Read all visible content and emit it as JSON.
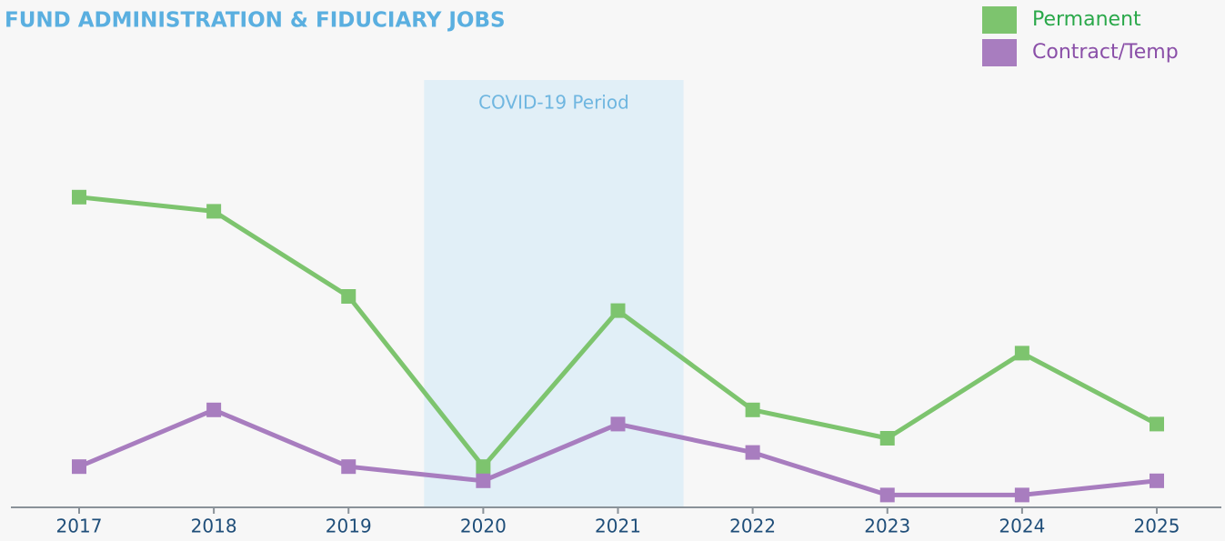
{
  "chart_data": {
    "type": "line",
    "title": "FUND ADMINISTRATION & FIDUCIARY JOBS",
    "categories": [
      "2017",
      "2018",
      "2019",
      "2020",
      "2021",
      "2022",
      "2023",
      "2024",
      "2025"
    ],
    "series": [
      {
        "name": "Permanent",
        "color": "#7dc46e",
        "text_color": "#2aa84a",
        "values": [
          22,
          21,
          15,
          3,
          14,
          7,
          5,
          11,
          6
        ]
      },
      {
        "name": "Contract/Temp",
        "color": "#a87dbf",
        "text_color": "#8a4fa8",
        "values": [
          3,
          7,
          3,
          2,
          6,
          4,
          1,
          1,
          2
        ]
      }
    ],
    "ylim": [
      0,
      30
    ],
    "shaded_region": {
      "label": "COVID-19 Period",
      "start": "2020",
      "end": "2021"
    },
    "legend": "top-right"
  }
}
